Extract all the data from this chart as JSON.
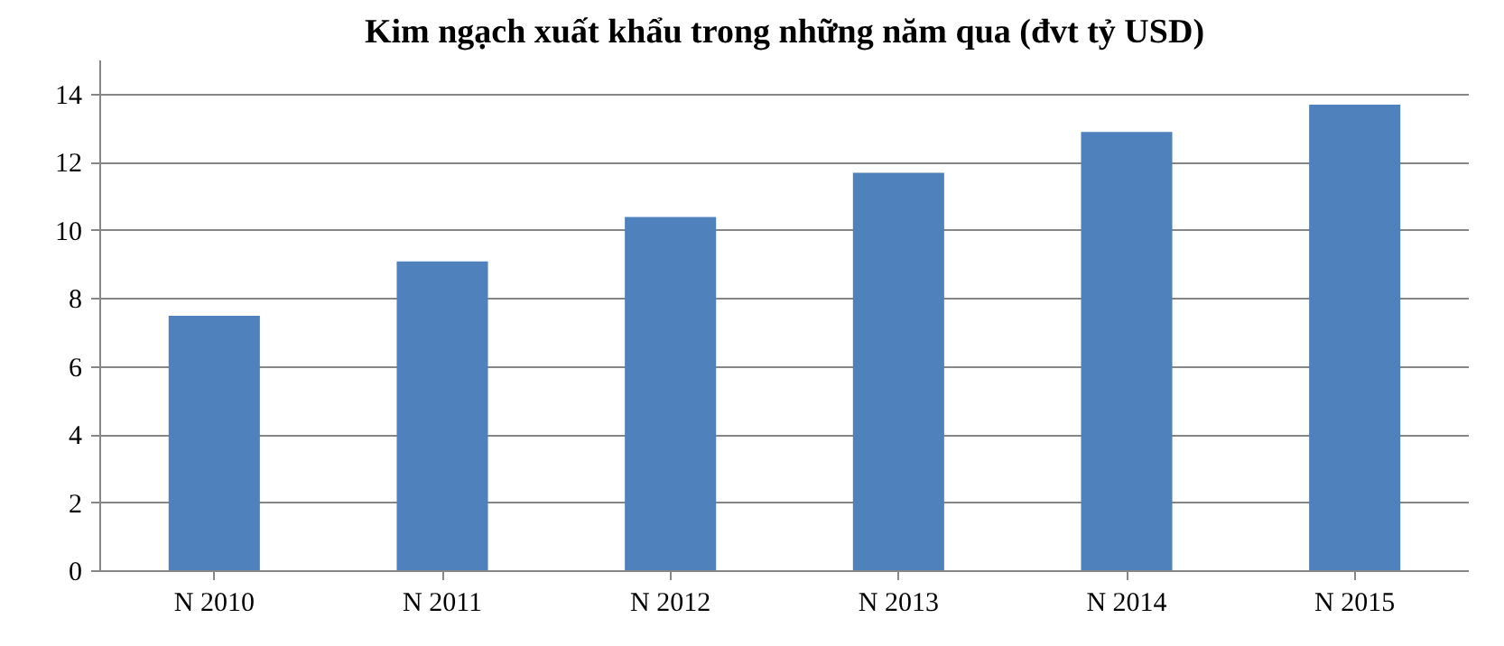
{
  "chart_data": {
    "type": "bar",
    "title": "Kim ngạch xuất khẩu trong những năm qua (đvt tỷ USD)",
    "categories": [
      "N 2010",
      "N 2011",
      "N 2012",
      "N 2013",
      "N 2014",
      "N 2015"
    ],
    "values": [
      7.5,
      9.1,
      10.4,
      11.7,
      12.9,
      13.7
    ],
    "color": "#4f81bd",
    "ylim": [
      0,
      15
    ],
    "yticks": [
      0,
      2,
      4,
      6,
      8,
      10,
      12,
      14
    ],
    "grid": "y"
  }
}
